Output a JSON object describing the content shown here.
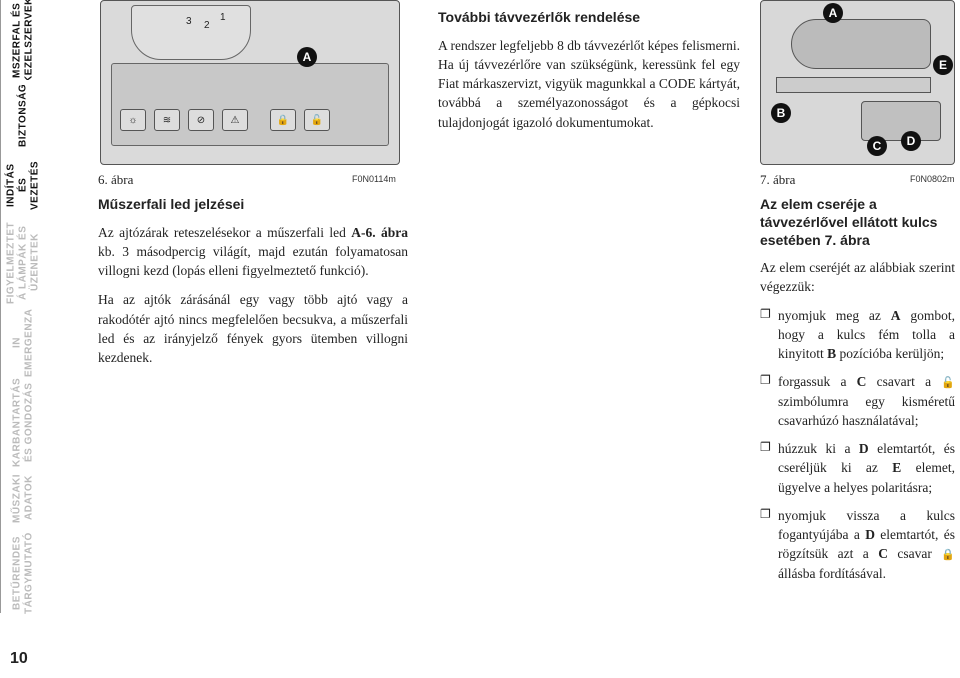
{
  "page_number": "10",
  "sidebar": {
    "tabs": [
      {
        "label": "MSZERFAL ÉS\nKEZELSZERVEK",
        "active": true
      },
      {
        "label": "BIZTONSÁG",
        "active": true
      },
      {
        "label": "INDÍTÁS ÉS\nVEZETÉS",
        "active": true
      },
      {
        "label": "FIGYELMEZTET\nÁ LÁMPÁK ÉS\nÜZENETEK",
        "active": false
      },
      {
        "label": "IN EMERGENZA",
        "active": false
      },
      {
        "label": "KARBANTARTÁS\nÉS GONDOZÁS",
        "active": false
      },
      {
        "label": "MŰSZAKI\nADATOK",
        "active": false
      },
      {
        "label": "BETŰRENDES\nTÁRGYMUTATÓ",
        "active": false
      }
    ],
    "heights": [
      80,
      70,
      70,
      85,
      76,
      82,
      70,
      80
    ]
  },
  "figures": {
    "left": {
      "caption": "6. ábra",
      "code": "F0N0114m",
      "callouts": {
        "A": "A"
      },
      "gauge_numbers": [
        "1",
        "2",
        "3"
      ],
      "buttons_icons": [
        "☼",
        "≋",
        "⊘",
        "⚠",
        "🔒",
        "🔓"
      ]
    },
    "right": {
      "caption": "7. ábra",
      "code": "F0N0802m",
      "callouts": {
        "A": "A",
        "B": "B",
        "C": "C",
        "D": "D",
        "E": "E"
      }
    }
  },
  "col1": {
    "heading": "Műszerfali led jelzései",
    "p1_a": "Az ajtózárak reteszelésekor a műszerfali led ",
    "p1_b": "A-6. ábra",
    "p1_c": " kb. 3 másodpercig világít, majd ezután folyamatosan villogni kezd (lopás elleni figyelmeztető funkció).",
    "p2": "Ha az ajtók zárásánál egy vagy több ajtó vagy a rakodótér ajtó nincs megfelelően becsukva, a műszerfali led és az irányjelző fények gyors ütemben villogni kezdenek."
  },
  "col2": {
    "heading": "További távvezérlők rendelése",
    "p1": "A rendszer legfeljebb 8 db távvezérlőt képes felismerni. Ha új távvezérlőre van szükségünk, keressünk fel egy Fiat márkaszervizt, vigyük magunkkal a CODE kártyát, továbbá a személyazonosságot és a gépkocsi tulajdonjogát igazoló dokumentumokat."
  },
  "col3": {
    "heading": "Az elem cseréje a távvezérlővel ellátott kulcs esetében 7. ábra",
    "intro": "Az elem cseréjét az alábbiak szerint végezzük:",
    "bullets": [
      {
        "pre": "nyomjuk meg az ",
        "b1": "A",
        "mid": " gombot, hogy a kulcs fém tolla a kinyitott ",
        "b2": "B",
        "post": " pozícióba kerüljön;"
      },
      {
        "pre": "forgassuk a ",
        "b1": "C",
        "mid": " csavart a ",
        "icon": "🔓",
        "post": " szimbólumra egy kisméretű csavarhúzó használatával;"
      },
      {
        "pre": "húzzuk ki a ",
        "b1": "D",
        "mid": " elemtartót, és cseréljük ki az ",
        "b2": "E",
        "post": " elemet, ügyelve a helyes polaritásra;"
      },
      {
        "pre": "nyomjuk vissza a kulcs fogantyújába a ",
        "b1": "D",
        "mid": " elemtartót, és rögzítsük azt a ",
        "b2": "C",
        "mid2": " csavar ",
        "icon": "🔒",
        "post": " állásba fordításával."
      }
    ]
  }
}
